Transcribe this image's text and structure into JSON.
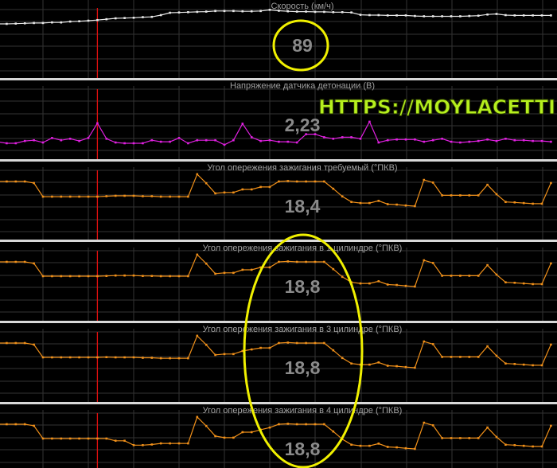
{
  "watermark": "HTTPS://MOYLACETTI.RU",
  "colors": {
    "background": "#000000",
    "grid": "#333333",
    "separator": "#d8d8d8",
    "cursor": "#e01010",
    "highlight": "#f0f000",
    "watermark": "#b6f01e"
  },
  "cursor_index": 11,
  "chart_data": [
    {
      "type": "line",
      "title": "Скорость  (км/ч)",
      "current_value": "89",
      "color": "#e8e8e8",
      "ylim": [
        50,
        100
      ],
      "grid": true,
      "highlighted": true,
      "values": [
        86.4,
        86.4,
        86.6,
        86.8,
        87,
        87,
        87.4,
        87.4,
        88,
        88.2,
        88.6,
        89,
        89.6,
        90.2,
        90.4,
        90.6,
        91,
        91.2,
        92.4,
        94,
        94.2,
        94.4,
        94.6,
        94.8,
        95.2,
        95.2,
        95.2,
        95,
        95,
        95.2,
        96,
        95.4,
        95,
        94.8,
        94.8,
        94.6,
        94.6,
        94.4,
        94.4,
        94.2,
        92.6,
        92.4,
        92.4,
        92.2,
        92.2,
        92.2,
        91.8,
        91.6,
        91.6,
        91.6,
        91.6,
        91.6,
        91.8,
        92,
        92.8,
        93.2,
        92.4,
        92.2,
        92.2,
        92.2,
        92.2,
        92.2
      ]
    },
    {
      "type": "line",
      "title": "Напряжение датчика детонации  (В)",
      "current_value": "2,23",
      "color": "#e020e0",
      "ylim": [
        0,
        4.6
      ],
      "grid": true,
      "values": [
        1.0,
        0.9,
        0.9,
        1.05,
        1.1,
        0.95,
        1.25,
        1.1,
        1.2,
        1.05,
        1.25,
        2.23,
        1.2,
        0.95,
        0.9,
        0.9,
        0.9,
        1.1,
        1.0,
        1.0,
        1.25,
        0.9,
        1.1,
        1.1,
        1.1,
        0.8,
        1.1,
        2.2,
        1.3,
        1.05,
        1.1,
        1.0,
        1.0,
        0.95,
        1.5,
        1.5,
        1.3,
        1.2,
        1.3,
        1.3,
        1.2,
        2.33,
        0.95,
        1.1,
        1.15,
        1.15,
        1.15,
        1.0,
        1.1,
        1.2,
        1.0,
        0.95,
        1.0,
        1.05,
        1.15,
        1.05,
        1.2,
        1.1,
        1.1,
        1.05,
        1.05,
        1.0
      ]
    },
    {
      "type": "line",
      "title": "Угол опережения зажигания требуемый  (°ПКВ)",
      "current_value": "18,4",
      "color": "#f0901a",
      "ylim": [
        0,
        30
      ],
      "grid": true,
      "values": [
        25.3,
        25.3,
        25.3,
        25.3,
        24.6,
        18.4,
        18.4,
        18.4,
        18.4,
        18.4,
        18.4,
        18.4,
        18.6,
        18.8,
        18.8,
        18.8,
        18.6,
        18.6,
        18.4,
        18.4,
        18.4,
        18.4,
        28.6,
        24.5,
        19.9,
        20.3,
        20.3,
        21.7,
        21.7,
        22.8,
        22.8,
        25.3,
        25.5,
        25.3,
        25.3,
        25.3,
        25.3,
        22,
        18.5,
        16.0,
        15.5,
        15.5,
        16.5,
        15.0,
        14.8,
        14.4,
        14.1,
        26,
        24.8,
        19.0,
        19.0,
        19.0,
        19.0,
        19.0,
        23.8,
        19.5,
        16.0,
        15.8,
        15.5,
        15.2,
        15.2,
        24.6
      ]
    },
    {
      "type": "line",
      "title": "Угол опережения зажигания в 1 цилиндре  (°ПКВ)",
      "current_value": "18,8",
      "color": "#f0901a",
      "ylim": [
        0,
        30
      ],
      "grid": true,
      "highlighted": true,
      "values": [
        25.3,
        25.3,
        25.3,
        25.3,
        24.6,
        18.8,
        18.8,
        18.8,
        18.8,
        18.8,
        18.8,
        18.8,
        18.9,
        19.1,
        19.1,
        19.1,
        18.9,
        18.9,
        18.8,
        18.8,
        18.8,
        18.8,
        28.6,
        24.5,
        19.9,
        20.3,
        20.3,
        21.7,
        21.7,
        22.8,
        22.8,
        25.3,
        25.5,
        25.3,
        25.3,
        25.3,
        25.3,
        22,
        18.5,
        16.0,
        15.5,
        15.5,
        16.5,
        15.0,
        14.8,
        14.4,
        14.1,
        26,
        24.8,
        19.0,
        19.0,
        19.0,
        19.0,
        19.0,
        23.8,
        19.5,
        16.0,
        15.8,
        15.5,
        15.2,
        15.2,
        24.6
      ]
    },
    {
      "type": "line",
      "title": "Угол опережения зажигания в 3 цилиндре  (°ПКВ)",
      "current_value": "18,8",
      "color": "#f0901a",
      "ylim": [
        0,
        30
      ],
      "grid": true,
      "highlighted": true,
      "values": [
        25.3,
        25.3,
        25.3,
        25.3,
        24.6,
        18.8,
        18.8,
        18.8,
        18.8,
        18.8,
        18.8,
        18.8,
        18.9,
        18.8,
        18.8,
        18.8,
        18.6,
        18.6,
        18.4,
        18.4,
        18.4,
        18.4,
        28.6,
        24.5,
        19.9,
        20.3,
        20.3,
        21.7,
        22.4,
        23.1,
        23.1,
        25.3,
        25.5,
        25.3,
        25.3,
        25.3,
        25.3,
        22,
        18.5,
        16.0,
        15.5,
        15.5,
        16.5,
        15.0,
        14.8,
        14.4,
        14.1,
        26,
        24.8,
        19.0,
        19.0,
        19.0,
        19.0,
        19.0,
        23.8,
        19.5,
        16.0,
        15.8,
        15.5,
        15.2,
        15.2,
        24.6
      ]
    },
    {
      "type": "line",
      "title": "Угол опережения зажигания в 4 цилиндре  (°ПКВ)",
      "current_value": "18,8",
      "color": "#f0901a",
      "ylim": [
        0,
        30
      ],
      "grid": true,
      "highlighted": true,
      "values": [
        25.3,
        25.3,
        25.3,
        25.3,
        24.6,
        18.8,
        18.8,
        18.8,
        18.8,
        18.8,
        18.8,
        18.8,
        18.8,
        17.8,
        17.8,
        15.8,
        15.8,
        16.1,
        16.6,
        16.6,
        16.6,
        16.6,
        28.6,
        24.5,
        19.9,
        19.2,
        19.2,
        21.7,
        21.7,
        22.8,
        23.8,
        25.3,
        25.5,
        25.3,
        25.3,
        25.3,
        25.3,
        22,
        18.5,
        16.0,
        15.5,
        15.5,
        16.5,
        15.0,
        14.8,
        14.4,
        14.1,
        26,
        24.8,
        19.0,
        19.0,
        19.0,
        19.0,
        19.0,
        23.8,
        19.5,
        16.0,
        15.8,
        15.5,
        15.2,
        15.2,
        24.6
      ]
    }
  ]
}
